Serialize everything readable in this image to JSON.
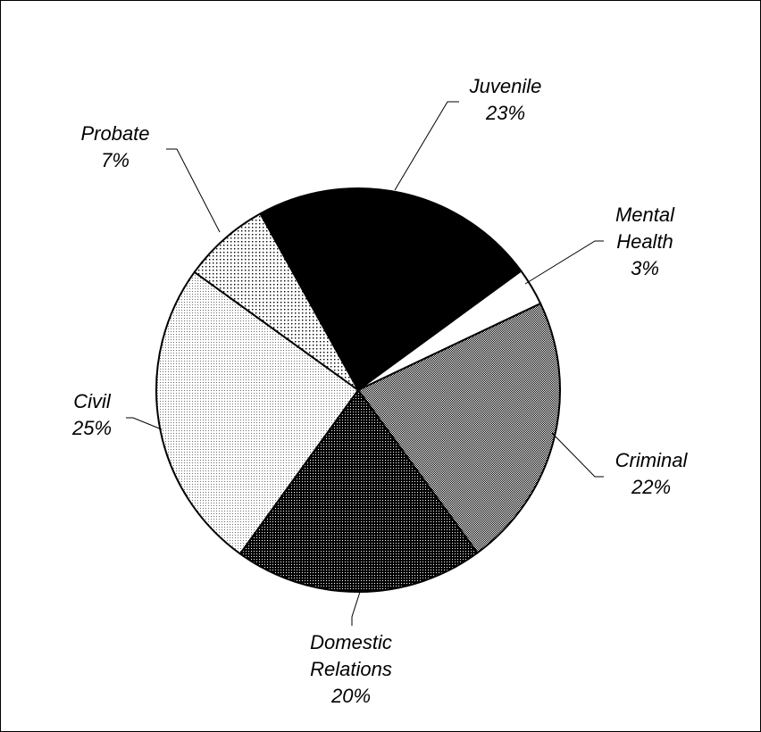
{
  "chart_data": {
    "type": "pie",
    "title": "",
    "slices": [
      {
        "label": [
          "Juvenile"
        ],
        "percent_label": "23%",
        "value": 23,
        "fill": "black"
      },
      {
        "label": [
          "Mental",
          "Health"
        ],
        "percent_label": "3%",
        "value": 3,
        "fill": "white"
      },
      {
        "label": [
          "Criminal"
        ],
        "percent_label": "22%",
        "value": 22,
        "fill": "gray-checker"
      },
      {
        "label": [
          "Domestic",
          "Relations"
        ],
        "percent_label": "20%",
        "value": 20,
        "fill": "dark-checker"
      },
      {
        "label": [
          "Civil"
        ],
        "percent_label": "25%",
        "value": 25,
        "fill": "light-dots"
      },
      {
        "label": [
          "Probate"
        ],
        "percent_label": "7%",
        "value": 7,
        "fill": "sparse-dots"
      }
    ],
    "start_angle_deg": -119,
    "direction": "clockwise",
    "colors": {
      "black": "#000000",
      "white": "#ffffff",
      "outline": "#000000"
    }
  }
}
